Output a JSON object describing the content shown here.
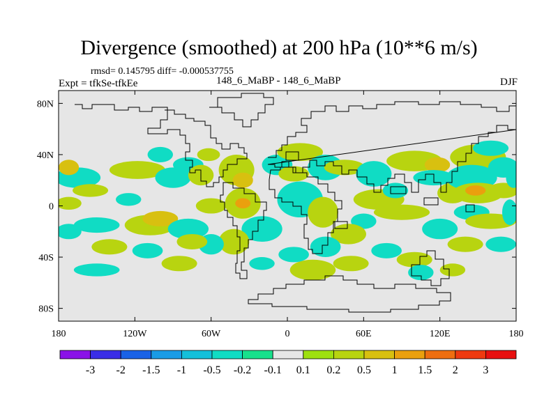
{
  "chart_data": {
    "type": "heatmap",
    "title": "Divergence (smoothed) at 200 hPa (10**6 m/s)",
    "stats": {
      "rmsd": "0.145795",
      "diff": "-0.000537755"
    },
    "stats_text": "rmsd= 0.145795 diff= -0.000537755",
    "experiment": "Expt = tfkSe-tfkEe",
    "runs": "148_6_MaBP - 148_6_MaBP",
    "season": "DJF",
    "x_axis": {
      "range": [
        -180,
        180
      ],
      "ticks": [
        -180,
        -120,
        -60,
        0,
        60,
        120,
        180
      ],
      "tick_labels": [
        "180",
        "120W",
        "60W",
        "0",
        "60E",
        "120E",
        "180"
      ]
    },
    "y_axis": {
      "range": [
        -90,
        90
      ],
      "ticks": [
        80,
        40,
        0,
        -40,
        -80
      ],
      "tick_labels": [
        "80N",
        "40N",
        "0",
        "40S",
        "80S"
      ]
    },
    "colorbar": {
      "labels": [
        "-3",
        "-2",
        "-1.5",
        "-1",
        "-0.5",
        "-0.2",
        "-0.1",
        "0.1",
        "0.2",
        "0.5",
        "1",
        "1.5",
        "2",
        "3"
      ],
      "colors": [
        "#8a12e8",
        "#3a2ee6",
        "#1a62e6",
        "#1a9ce6",
        "#14c0da",
        "#10dcc4",
        "#18e08c",
        "#e6e6e6",
        "#9ee010",
        "#b8d410",
        "#d8c010",
        "#eaa00e",
        "#ee6e10",
        "#ee3a10",
        "#e81010"
      ]
    },
    "features": [
      {
        "lon": -118,
        "lat": 28,
        "a": 22,
        "b": 7,
        "v": 0.45
      },
      {
        "lon": -90,
        "lat": 22,
        "a": 14,
        "b": 8,
        "v": -0.3
      },
      {
        "lon": -100,
        "lat": 40,
        "a": 10,
        "b": 6,
        "v": -0.3
      },
      {
        "lon": -78,
        "lat": 32,
        "a": 12,
        "b": 6,
        "v": -0.3
      },
      {
        "lon": -68,
        "lat": 24,
        "a": 10,
        "b": 8,
        "v": 0.3
      },
      {
        "lon": -62,
        "lat": 40,
        "a": 9,
        "b": 5,
        "v": 0.3
      },
      {
        "lon": -165,
        "lat": 22,
        "a": 18,
        "b": 8,
        "v": -0.3
      },
      {
        "lon": -172,
        "lat": 30,
        "a": 8,
        "b": 6,
        "v": 0.5
      },
      {
        "lon": -155,
        "lat": 12,
        "a": 14,
        "b": 5,
        "v": 0.3
      },
      {
        "lon": -125,
        "lat": 5,
        "a": 10,
        "b": 5,
        "v": -0.3
      },
      {
        "lon": -172,
        "lat": 2,
        "a": 10,
        "b": 5,
        "v": 0.3
      },
      {
        "lon": -150,
        "lat": -15,
        "a": 18,
        "b": 6,
        "v": -0.3
      },
      {
        "lon": -172,
        "lat": -20,
        "a": 10,
        "b": 6,
        "v": -0.3
      },
      {
        "lon": -108,
        "lat": -15,
        "a": 20,
        "b": 8,
        "v": 0.3
      },
      {
        "lon": -100,
        "lat": -10,
        "a": 14,
        "b": 6,
        "v": 0.5
      },
      {
        "lon": -78,
        "lat": -18,
        "a": 16,
        "b": 8,
        "v": -0.3
      },
      {
        "lon": -60,
        "lat": 0,
        "a": 12,
        "b": 6,
        "v": 0.3
      },
      {
        "lon": -40,
        "lat": 28,
        "a": 14,
        "b": 12,
        "v": 0.3
      },
      {
        "lon": -35,
        "lat": 20,
        "a": 8,
        "b": 6,
        "v": 0.6
      },
      {
        "lon": -35,
        "lat": 2,
        "a": 14,
        "b": 12,
        "v": 0.4
      },
      {
        "lon": -35,
        "lat": 2,
        "a": 6,
        "b": 4,
        "v": 1.2
      },
      {
        "lon": -20,
        "lat": -18,
        "a": 16,
        "b": 10,
        "v": -0.3
      },
      {
        "lon": -42,
        "lat": -28,
        "a": 12,
        "b": 10,
        "v": 0.3
      },
      {
        "lon": -60,
        "lat": -30,
        "a": 10,
        "b": 8,
        "v": -0.3
      },
      {
        "lon": -75,
        "lat": -28,
        "a": 12,
        "b": 6,
        "v": 0.3
      },
      {
        "lon": -140,
        "lat": -32,
        "a": 14,
        "b": 6,
        "v": 0.3
      },
      {
        "lon": -110,
        "lat": -35,
        "a": 12,
        "b": 6,
        "v": -0.3
      },
      {
        "lon": -150,
        "lat": -50,
        "a": 18,
        "b": 5,
        "v": -0.3
      },
      {
        "lon": -85,
        "lat": -45,
        "a": 14,
        "b": 6,
        "v": 0.3
      },
      {
        "lon": -20,
        "lat": -45,
        "a": 10,
        "b": 5,
        "v": -0.3
      },
      {
        "lon": -8,
        "lat": 32,
        "a": 12,
        "b": 8,
        "v": -0.3
      },
      {
        "lon": 10,
        "lat": 42,
        "a": 18,
        "b": 7,
        "v": 0.3
      },
      {
        "lon": 5,
        "lat": 25,
        "a": 12,
        "b": 6,
        "v": 0.3
      },
      {
        "lon": 30,
        "lat": 30,
        "a": 14,
        "b": 10,
        "v": -0.3
      },
      {
        "lon": 10,
        "lat": 5,
        "a": 18,
        "b": 14,
        "v": -0.3
      },
      {
        "lon": 28,
        "lat": -5,
        "a": 12,
        "b": 12,
        "v": 0.3
      },
      {
        "lon": 45,
        "lat": 30,
        "a": 16,
        "b": 6,
        "v": 0.3
      },
      {
        "lon": 68,
        "lat": 25,
        "a": 14,
        "b": 10,
        "v": -0.3
      },
      {
        "lon": 72,
        "lat": 5,
        "a": 20,
        "b": 8,
        "v": 0.4
      },
      {
        "lon": 85,
        "lat": 12,
        "a": 10,
        "b": 6,
        "v": -0.3
      },
      {
        "lon": 90,
        "lat": -5,
        "a": 22,
        "b": 6,
        "v": 0.3
      },
      {
        "lon": 60,
        "lat": -12,
        "a": 10,
        "b": 6,
        "v": -0.3
      },
      {
        "lon": 48,
        "lat": -22,
        "a": 14,
        "b": 8,
        "v": 0.4
      },
      {
        "lon": 30,
        "lat": -32,
        "a": 12,
        "b": 8,
        "v": -0.3
      },
      {
        "lon": 20,
        "lat": -50,
        "a": 18,
        "b": 8,
        "v": 0.3
      },
      {
        "lon": 5,
        "lat": -38,
        "a": 12,
        "b": 6,
        "v": -0.3
      },
      {
        "lon": 50,
        "lat": -45,
        "a": 14,
        "b": 6,
        "v": 0.3
      },
      {
        "lon": 78,
        "lat": -35,
        "a": 12,
        "b": 6,
        "v": -0.3
      },
      {
        "lon": 100,
        "lat": -42,
        "a": 14,
        "b": 6,
        "v": 0.3
      },
      {
        "lon": 105,
        "lat": -52,
        "a": 10,
        "b": 6,
        "v": -0.3
      },
      {
        "lon": 130,
        "lat": -50,
        "a": 10,
        "b": 5,
        "v": 0.3
      },
      {
        "lon": 100,
        "lat": 35,
        "a": 22,
        "b": 8,
        "v": 0.3
      },
      {
        "lon": 118,
        "lat": 32,
        "a": 10,
        "b": 6,
        "v": 0.5
      },
      {
        "lon": 115,
        "lat": 22,
        "a": 16,
        "b": 6,
        "v": -0.3
      },
      {
        "lon": 130,
        "lat": 10,
        "a": 12,
        "b": 8,
        "v": 0.3
      },
      {
        "lon": 150,
        "lat": 38,
        "a": 22,
        "b": 10,
        "v": 0.3
      },
      {
        "lon": 160,
        "lat": 45,
        "a": 14,
        "b": 6,
        "v": -0.3
      },
      {
        "lon": 145,
        "lat": 22,
        "a": 20,
        "b": 10,
        "v": -0.3
      },
      {
        "lon": 150,
        "lat": 10,
        "a": 20,
        "b": 8,
        "v": 0.4
      },
      {
        "lon": 148,
        "lat": 12,
        "a": 8,
        "b": 4,
        "v": 1.2
      },
      {
        "lon": 170,
        "lat": 30,
        "a": 12,
        "b": 8,
        "v": -0.3
      },
      {
        "lon": 170,
        "lat": 12,
        "a": 12,
        "b": 6,
        "v": 0.3
      },
      {
        "lon": 145,
        "lat": -5,
        "a": 14,
        "b": 6,
        "v": -0.3
      },
      {
        "lon": 160,
        "lat": -12,
        "a": 20,
        "b": 6,
        "v": 0.3
      },
      {
        "lon": 120,
        "lat": -18,
        "a": 14,
        "b": 8,
        "v": -0.3
      },
      {
        "lon": 140,
        "lat": -30,
        "a": 14,
        "b": 6,
        "v": 0.3
      },
      {
        "lon": 168,
        "lat": -30,
        "a": 12,
        "b": 6,
        "v": -0.3
      },
      {
        "lon": 175,
        "lat": -5,
        "a": 6,
        "b": 10,
        "v": -0.3
      },
      {
        "lon": 178,
        "lat": 22,
        "a": 6,
        "b": 8,
        "v": -0.3
      }
    ]
  }
}
